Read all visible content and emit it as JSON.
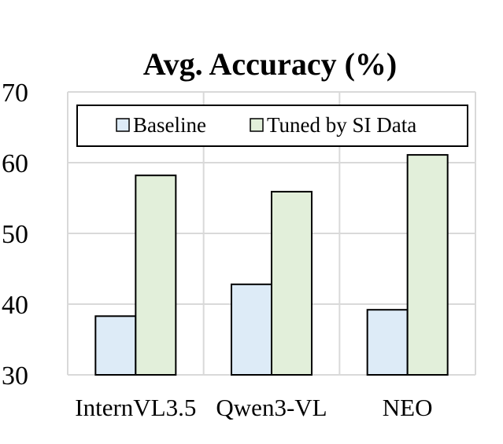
{
  "chart_data": {
    "type": "bar",
    "title": "Avg. Accuracy (%)",
    "xlabel": "",
    "ylabel": "",
    "categories": [
      "InternVL3.5",
      "Qwen3-VL",
      "NEO"
    ],
    "series": [
      {
        "name": "Baseline",
        "values": [
          38.3,
          42.8,
          39.2
        ],
        "color": "#ddebf7"
      },
      {
        "name": "Tuned by SI Data",
        "values": [
          58.2,
          55.9,
          61.1
        ],
        "color": "#e2efda"
      }
    ],
    "ylim": [
      30,
      70
    ],
    "yticks": [
      "30",
      "40",
      "50",
      "60",
      "70"
    ],
    "grid": true,
    "legend_position": "top",
    "colors": {
      "bar_stroke": "#000000",
      "grid": "#d9d9d9",
      "baseline": "#ddebf7",
      "tuned": "#e2efda"
    }
  }
}
